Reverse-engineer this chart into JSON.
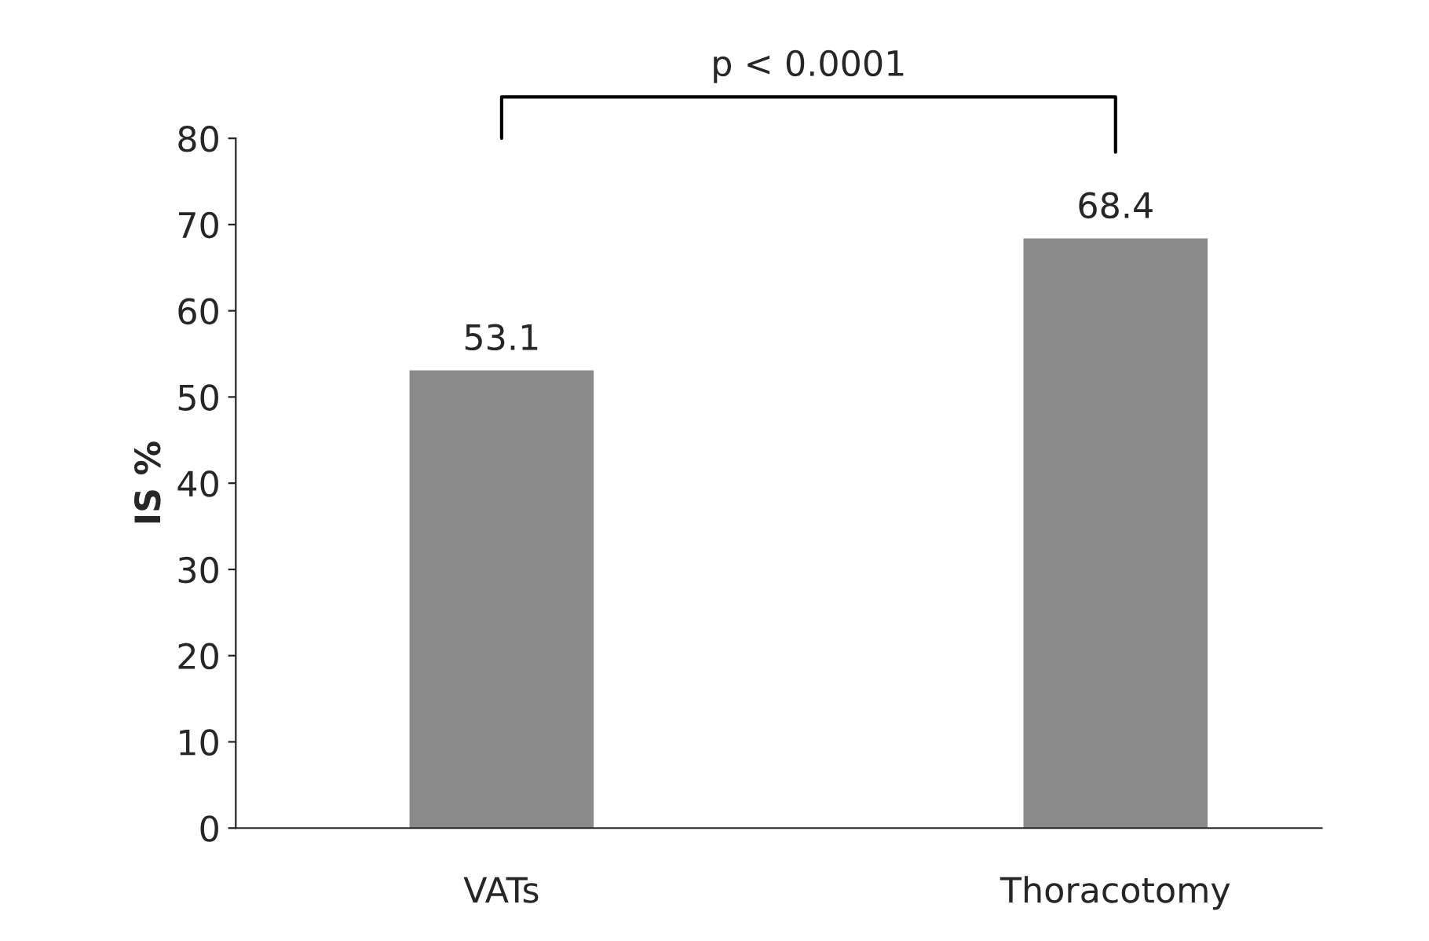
{
  "chart_data": {
    "type": "bar",
    "ylabel": "IS %",
    "categories": [
      "VATs",
      "Thoracotomy"
    ],
    "values": [
      53.1,
      68.4
    ],
    "color": "#8a8a8a",
    "ylim": [
      0,
      80
    ],
    "yticks": [
      0,
      10,
      20,
      30,
      40,
      50,
      60,
      70,
      80
    ],
    "grid": false,
    "data_labels": true,
    "legend": false,
    "annotations": [
      "p < 0.0001"
    ]
  }
}
